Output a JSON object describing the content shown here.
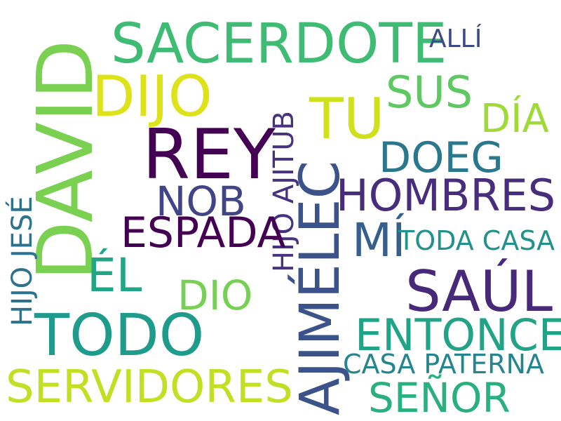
{
  "words": [
    {
      "text": "SACERDOTE",
      "color": "#3fbc73"
    },
    {
      "text": "ALLÍ",
      "color": "#3e4989"
    },
    {
      "text": "DIJO",
      "color": "#dde318"
    },
    {
      "text": "TU",
      "color": "#d0e11c"
    },
    {
      "text": "SUS",
      "color": "#5ec962"
    },
    {
      "text": "DÍA",
      "color": "#a0da39"
    },
    {
      "text": "DAVID",
      "color": "#7ad151"
    },
    {
      "text": "REY",
      "color": "#440154"
    },
    {
      "text": "DOEG",
      "color": "#2a788e"
    },
    {
      "text": "NOB",
      "color": "#414487"
    },
    {
      "text": "HOMBRES",
      "color": "#472d7b"
    },
    {
      "text": "HIJO AJITUB",
      "color": "#46327e"
    },
    {
      "text": "HIJO JESÉ",
      "color": "#2c728e"
    },
    {
      "text": "ESPADA",
      "color": "#440154"
    },
    {
      "text": "MÍ",
      "color": "#355f8d"
    },
    {
      "text": "TODA CASA",
      "color": "#21918c"
    },
    {
      "text": "ÉL",
      "color": "#21a685"
    },
    {
      "text": "AJIMÉLEC",
      "color": "#3b528b"
    },
    {
      "text": "SAÚL",
      "color": "#482878"
    },
    {
      "text": "DIO",
      "color": "#75d054"
    },
    {
      "text": "TODO",
      "color": "#1e9b8a"
    },
    {
      "text": "ENTONCES",
      "color": "#20a386"
    },
    {
      "text": "CASA PATERNA",
      "color": "#25858e"
    },
    {
      "text": "SERVIDORES",
      "color": "#c2df23"
    },
    {
      "text": "SEÑOR",
      "color": "#2ab07f"
    }
  ]
}
